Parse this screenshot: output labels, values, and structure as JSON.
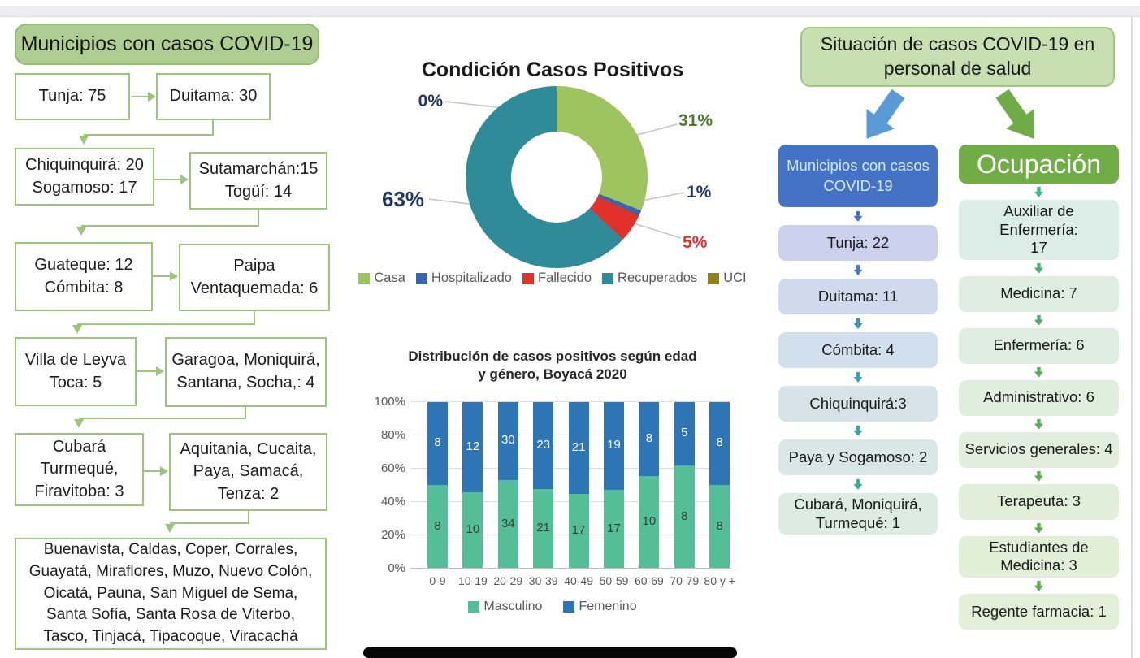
{
  "left_flowchart": {
    "title": "Municipios con casos COVID-19",
    "rows": [
      {
        "left": "Tunja: 75",
        "right": "Duitama: 30"
      },
      {
        "left": "Chiquinquirá: 20\nSogamoso: 17",
        "right": "Sutamarchán:15\nTogüí: 14"
      },
      {
        "left": "Guateque: 12\nCómbita: 8",
        "right": "Paipa\nVentaquemada: 6"
      },
      {
        "left": "Villa de Leyva\nToca: 5",
        "right": "Garagoa, Moniquirá,\nSantana, Socha,: 4"
      },
      {
        "left": "Cubará\nTurmequé,\nFiravitoba: 3",
        "right": "Aquitania, Cucaita,\nPaya,  Samacá,\nTenza: 2"
      }
    ],
    "footer": "Buenavista, Caldas, Coper, Corrales, Guayatá, Miraflores, Muzo, Nuevo Colón, Oicatá, Pauna, San Miguel de Sema, Santa Sofía, Santa Rosa de Viterbo, Tasco, Tinjacá, Tipacoque, Viracachá",
    "accent_color": "#9CC47C"
  },
  "chart_data": [
    {
      "type": "pie",
      "donut": true,
      "title": "Condición Casos Positivos",
      "labels": [
        "Casa",
        "Hospitalizado",
        "Fallecido",
        "Recuperados",
        "UCI"
      ],
      "values": [
        31,
        1,
        5,
        63,
        0
      ],
      "unit": "%",
      "colors": [
        "#9DC45F",
        "#3A64AD",
        "#E0312B",
        "#2E8B97",
        "#94801B"
      ],
      "callout_colors": [
        "#4E7A2E",
        "#203864",
        "#E0312B",
        "#203864",
        "#203864"
      ],
      "legend_position": "bottom"
    },
    {
      "type": "bar",
      "stacked": "percent",
      "title": "Distribución de casos positivos según edad\ny género, Boyacá 2020",
      "categories": [
        "0-9",
        "10-19",
        "20-29",
        "30-39",
        "40-49",
        "50-59",
        "60-69",
        "70-79",
        "80 y +"
      ],
      "series": [
        {
          "name": "Masculino",
          "color": "#53BE97",
          "values": [
            8,
            10,
            34,
            21,
            17,
            17,
            10,
            8,
            8
          ]
        },
        {
          "name": "Femenino",
          "color": "#2E75B6",
          "values": [
            8,
            12,
            30,
            23,
            21,
            19,
            8,
            5,
            8
          ]
        }
      ],
      "yticks": [
        "0%",
        "20%",
        "40%",
        "60%",
        "80%",
        "100%"
      ],
      "ylim": [
        0,
        100
      ],
      "grid": true,
      "legend_position": "bottom"
    }
  ],
  "right_panel": {
    "title": "Situación de casos COVID-19 en\npersonal de salud",
    "municipios": {
      "header": "Municipios con casos\nCOVID-19",
      "header_bg": "#4473C5",
      "items": [
        {
          "label": "Tunja: 22",
          "bg": "#CBD1EC",
          "arrow": "#4473C5"
        },
        {
          "label": "Duitama: 11",
          "bg": "#CFDAEE",
          "arrow": "#4579C7"
        },
        {
          "label": "Cómbita: 4",
          "bg": "#D2DFEC",
          "arrow": "#3F94BC"
        },
        {
          "label": "Chiquinquirá:3",
          "bg": "#D6E4EA",
          "arrow": "#37A5B2"
        },
        {
          "label": "Paya y Sogamoso: 2",
          "bg": "#D9E8E6",
          "arrow": "#32ABA3"
        },
        {
          "label": "Cubará, Moniquirá,\nTurmequé: 1",
          "bg": "#DCEBE3",
          "arrow": "#39AD96"
        }
      ]
    },
    "ocupacion": {
      "header": "Ocupación",
      "header_bg": "#70AD47",
      "items": [
        {
          "label": "Auxiliar de Enfermería:\n17",
          "bg": "#DCECE6",
          "arrow": "#44B294"
        },
        {
          "label": "Medicina: 7",
          "bg": "#DDEDE2",
          "arrow": "#4FAE74"
        },
        {
          "label": "Enfermería: 6",
          "bg": "#DEEDDF",
          "arrow": "#55AC68"
        },
        {
          "label": "Administrativo:  6",
          "bg": "#DFEEDD",
          "arrow": "#59AB60"
        },
        {
          "label": "Servicios generales: 4",
          "bg": "#E0EEDB",
          "arrow": "#5CAB5B"
        },
        {
          "label": "Terapeuta: 3",
          "bg": "#E1EFDA",
          "arrow": "#5EAA57"
        },
        {
          "label": "Estudiantes de\nMedicina: 3",
          "bg": "#E1EFD9",
          "arrow": "#60AA54"
        },
        {
          "label": "Regente farmacia: 1",
          "bg": "#E2F0D9",
          "arrow": "#61AA52"
        }
      ]
    }
  }
}
